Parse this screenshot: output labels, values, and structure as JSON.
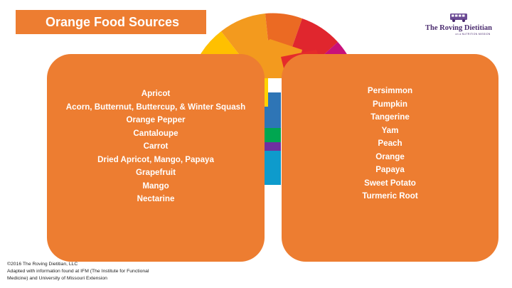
{
  "title": "Orange Food Sources",
  "logo": {
    "name": "The Roving Dietitian",
    "tagline": "on a NUTRITION MISSION",
    "icon": "bus-icon"
  },
  "left_list": [
    "Apricot",
    "Acorn, Butternut, Buttercup, & Winter Squash",
    "Orange Pepper",
    "Cantaloupe",
    "Carrot",
    "Dried Apricot, Mango, Papaya",
    "Grapefruit",
    "Mango",
    "Nectarine"
  ],
  "right_list": [
    "Persimmon",
    "Pumpkin",
    "Tangerine",
    "Yam",
    "Peach",
    "Orange",
    "Papaya",
    "Sweet Potato",
    "Turmeric Root"
  ],
  "footer": {
    "line1": "©2016 The Roving Dietitian, LLC",
    "line2": "Adapted with information found at IFM (The Institute for Functional",
    "line3": "Medicine) and University of Missouri Extension"
  },
  "colors": {
    "accent": "#ED7D31",
    "logo": "#4B2C6F"
  }
}
